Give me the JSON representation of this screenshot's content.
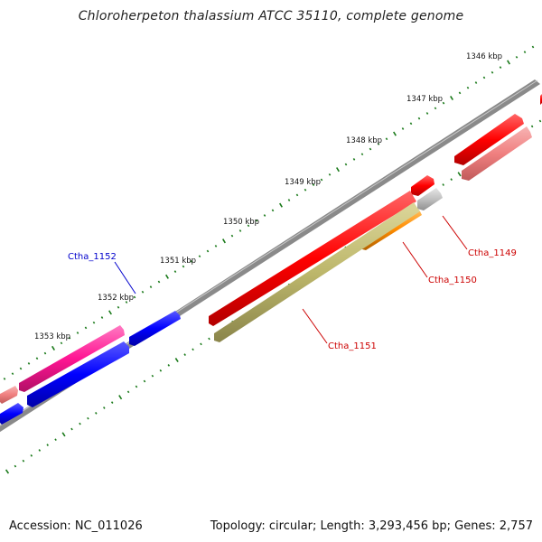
{
  "title": "Chloroherpeton thalassium ATCC 35110, complete genome",
  "footer": {
    "accession": "Accession: NC_011026",
    "stats": "Topology: circular; Length: 3,293,456 bp; Genes: 2,757"
  },
  "scale_labels": [
    "1346 kbp",
    "1347 kbp",
    "1348 kbp",
    "1349 kbp",
    "1350 kbp",
    "1351 kbp",
    "1352 kbp",
    "1353 kbp"
  ],
  "gene_labels": {
    "ctha_1152": "Ctha_1152",
    "ctha_1151": "Ctha_1151",
    "ctha_1150": "Ctha_1150",
    "ctha_1149": "Ctha_1149"
  },
  "colors": {
    "backbone": "#808080",
    "tick": "#1a7a1a",
    "gene_red": "#ff0000",
    "gene_pink": "#f08080",
    "gene_magenta": "#ff1493",
    "gene_blue": "#0000ff",
    "gene_olive": "#bdb76b",
    "gene_orange": "#ff8c00",
    "gene_grey": "#c0c0c0",
    "label_blue": "#0000cc",
    "label_red": "#cc0000"
  }
}
